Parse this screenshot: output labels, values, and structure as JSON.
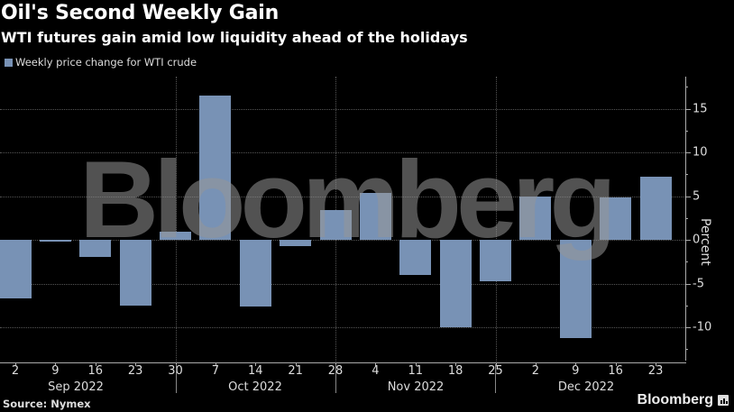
{
  "header": {
    "title": "Oil's Second Weekly Gain",
    "subtitle": "WTI futures gain amid low liquidity ahead of the holidays"
  },
  "legend": {
    "label": "Weekly price change for WTI crude",
    "color": "#7892b5"
  },
  "footer": {
    "source": "Source: Nymex",
    "brand": "Bloomberg"
  },
  "watermark": "Bloomberg",
  "axis": {
    "y_title": "Percent",
    "y_ticks": [
      "15",
      "10",
      "5",
      "0",
      "-5",
      "-10"
    ],
    "months": [
      "Sep 2022",
      "Oct 2022",
      "Nov 2022",
      "Dec 2022"
    ]
  },
  "chart_data": {
    "type": "bar",
    "title": "Oil's Second Weekly Gain",
    "subtitle": "WTI futures gain amid low liquidity ahead of the holidays",
    "xlabel": "",
    "ylabel": "Percent",
    "ylim": [
      -13,
      19
    ],
    "y_ticks": [
      -10,
      -5,
      0,
      5,
      10,
      15
    ],
    "grid": true,
    "legend_position": "top-left",
    "categories": [
      "Sep 2",
      "Sep 9",
      "Sep 16",
      "Sep 23",
      "Sep 30",
      "Oct 7",
      "Oct 14",
      "Oct 21",
      "Oct 28",
      "Nov 4",
      "Nov 11",
      "Nov 18",
      "Nov 25",
      "Dec 2",
      "Dec 9",
      "Dec 16",
      "Dec 23"
    ],
    "x_tick_labels": [
      "2",
      "9",
      "16",
      "23",
      "30",
      "7",
      "14",
      "21",
      "28",
      "4",
      "11",
      "18",
      "25",
      "2",
      "9",
      "16",
      "23"
    ],
    "series": [
      {
        "name": "Weekly price change for WTI crude",
        "color": "#7892b5",
        "values": [
          -6.7,
          -0.2,
          -2.0,
          -7.5,
          0.9,
          16.5,
          -7.6,
          -0.7,
          3.4,
          5.4,
          -4.0,
          -10.0,
          -4.7,
          4.9,
          -11.2,
          4.8,
          7.2
        ]
      }
    ],
    "source": "Source: Nymex"
  }
}
